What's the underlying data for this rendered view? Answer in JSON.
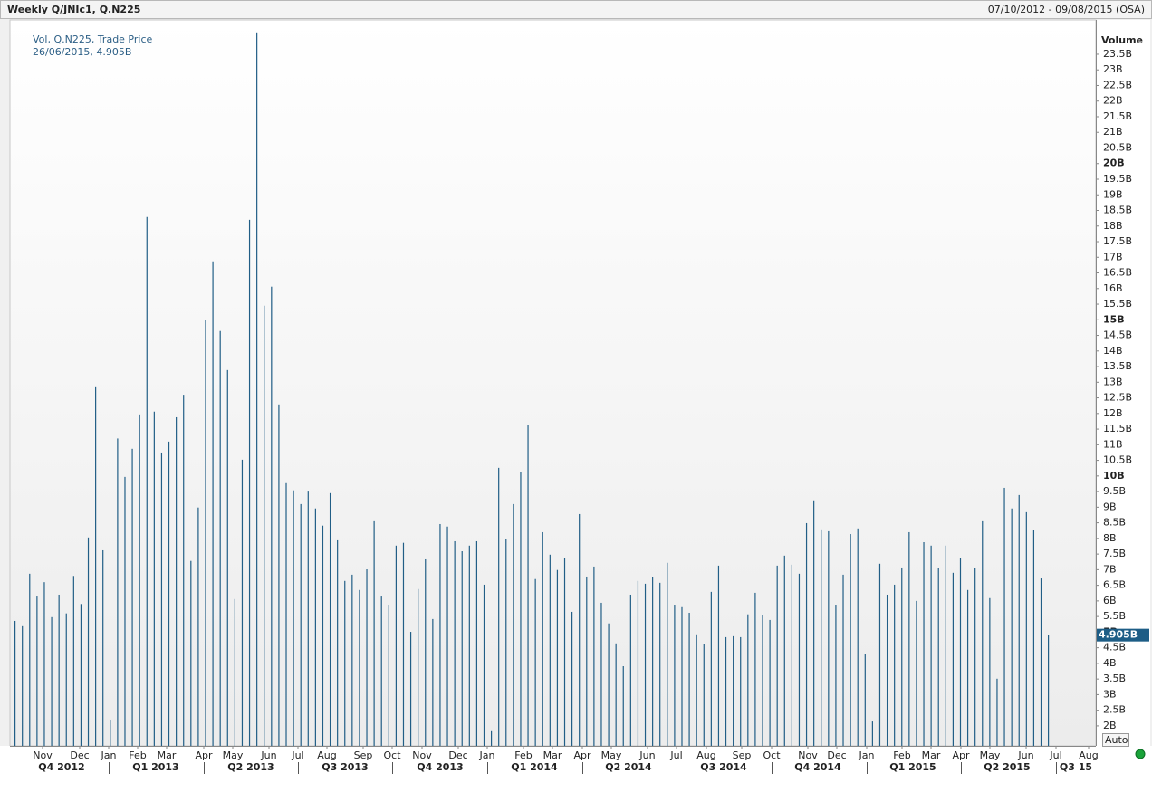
{
  "header": {
    "title": "Weekly Q/JNIc1, Q.N225",
    "range": "07/10/2012 - 09/08/2015 (OSA)"
  },
  "chart_data": {
    "type": "bar",
    "legend": [
      "Vol, Q.N225, Trade Price",
      "26/06/2015, 4.905B"
    ],
    "y_axis_label": "Volume",
    "current_value_label": "4.905B",
    "auto_button": "Auto",
    "color": "#215e86",
    "ylim": [
      1.36,
      24.6
    ],
    "yticks": [
      {
        "value": 2,
        "label": "2B"
      },
      {
        "value": 2.5,
        "label": "2.5B"
      },
      {
        "value": 3,
        "label": "3B"
      },
      {
        "value": 3.5,
        "label": "3.5B"
      },
      {
        "value": 4,
        "label": "4B"
      },
      {
        "value": 4.5,
        "label": "4.5B"
      },
      {
        "value": 5,
        "label": "5B"
      },
      {
        "value": 5.5,
        "label": "5.5B"
      },
      {
        "value": 6,
        "label": "6B"
      },
      {
        "value": 6.5,
        "label": "6.5B"
      },
      {
        "value": 7,
        "label": "7B"
      },
      {
        "value": 7.5,
        "label": "7.5B"
      },
      {
        "value": 8,
        "label": "8B"
      },
      {
        "value": 8.5,
        "label": "8.5B"
      },
      {
        "value": 9,
        "label": "9B"
      },
      {
        "value": 9.5,
        "label": "9.5B"
      },
      {
        "value": 10,
        "label": "10B"
      },
      {
        "value": 10.5,
        "label": "10.5B"
      },
      {
        "value": 11,
        "label": "11B"
      },
      {
        "value": 11.5,
        "label": "11.5B"
      },
      {
        "value": 12,
        "label": "12B"
      },
      {
        "value": 12.5,
        "label": "12.5B"
      },
      {
        "value": 13,
        "label": "13B"
      },
      {
        "value": 13.5,
        "label": "13.5B"
      },
      {
        "value": 14,
        "label": "14B"
      },
      {
        "value": 14.5,
        "label": "14.5B"
      },
      {
        "value": 15,
        "label": "15B"
      },
      {
        "value": 15.5,
        "label": "15.5B"
      },
      {
        "value": 16,
        "label": "16B"
      },
      {
        "value": 16.5,
        "label": "16.5B"
      },
      {
        "value": 17,
        "label": "17B"
      },
      {
        "value": 17.5,
        "label": "17.5B"
      },
      {
        "value": 18,
        "label": "18B"
      },
      {
        "value": 18.5,
        "label": "18.5B"
      },
      {
        "value": 19,
        "label": "19B"
      },
      {
        "value": 19.5,
        "label": "19.5B"
      },
      {
        "value": 20,
        "label": "20B"
      },
      {
        "value": 20.5,
        "label": "20.5B"
      },
      {
        "value": 21,
        "label": "21B"
      },
      {
        "value": 21.5,
        "label": "21.5B"
      },
      {
        "value": 22,
        "label": "22B"
      },
      {
        "value": 22.5,
        "label": "22.5B"
      },
      {
        "value": 23,
        "label": "23B"
      },
      {
        "value": 23.5,
        "label": "23.5B"
      }
    ],
    "months": [
      "Nov",
      "Dec",
      "Jan",
      "Feb",
      "Mar",
      "Apr",
      "May",
      "Jun",
      "Jul",
      "Aug",
      "Sep",
      "Oct",
      "Nov",
      "Dec",
      "Jan",
      "Feb",
      "Mar",
      "Apr",
      "May",
      "Jun",
      "Jul",
      "Aug",
      "Sep",
      "Oct",
      "Nov",
      "Dec",
      "Jan",
      "Feb",
      "Mar",
      "Apr",
      "May",
      "Jun",
      "Jul",
      "Aug"
    ],
    "quarters": [
      "Q4 2012",
      "Q1 2013",
      "Q2 2013",
      "Q3 2013",
      "Q4 2013",
      "Q1 2014",
      "Q2 2014",
      "Q3 2014",
      "Q4 2014",
      "Q1 2015",
      "Q2 2015",
      "Q3 15"
    ],
    "values": [
      5.36,
      5.19,
      6.87,
      6.14,
      6.6,
      5.48,
      6.2,
      5.6,
      6.8,
      5.9,
      8.03,
      12.84,
      7.62,
      2.17,
      11.2,
      9.97,
      10.87,
      11.97,
      18.29,
      12.06,
      10.75,
      11.1,
      11.88,
      12.6,
      7.28,
      8.99,
      14.99,
      16.87,
      14.64,
      13.39,
      6.06,
      10.52,
      18.2,
      24.2,
      15.45,
      16.06,
      12.29,
      9.77,
      9.54,
      9.1,
      9.5,
      8.96,
      8.41,
      9.45,
      7.94,
      6.64,
      6.84,
      6.35,
      7.01,
      8.55,
      6.14,
      5.88,
      7.77,
      7.86,
      5.01,
      6.38,
      7.33,
      5.42,
      8.46,
      8.38,
      7.91,
      7.59,
      7.77,
      7.91,
      6.52,
      1.83,
      10.26,
      7.97,
      9.1,
      10.14,
      11.62,
      6.7,
      8.2,
      7.48,
      6.99,
      7.36,
      5.65,
      8.78,
      6.78,
      7.1,
      5.94,
      5.28,
      4.64,
      3.91,
      6.2,
      6.64,
      6.55,
      6.75,
      6.58,
      7.22,
      5.88,
      5.8,
      5.62,
      4.93,
      4.61,
      6.29,
      7.13,
      4.84,
      4.87,
      4.84,
      5.57,
      6.26,
      5.54,
      5.39,
      7.13,
      7.45,
      7.16,
      6.87,
      8.49,
      9.22,
      8.29,
      8.23,
      5.88,
      6.84,
      8.14,
      8.32,
      4.29,
      2.14,
      7.19,
      6.2,
      6.52,
      7.07,
      8.2,
      6.0,
      7.88,
      7.77,
      7.04,
      7.77,
      6.9,
      7.36,
      6.35,
      7.04,
      8.55,
      6.09,
      3.51,
      9.62,
      8.96,
      9.39,
      8.84,
      8.26,
      6.72,
      4.905
    ]
  }
}
